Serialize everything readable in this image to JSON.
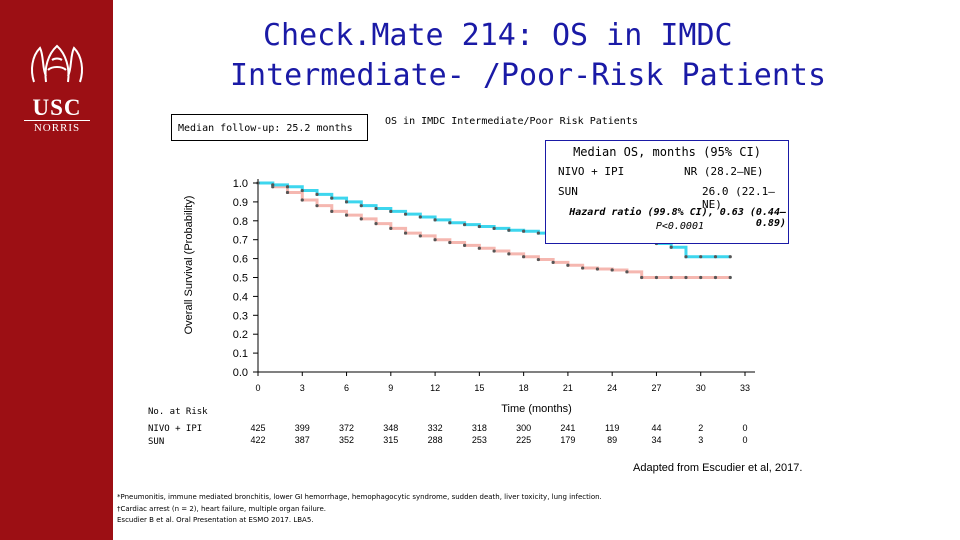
{
  "slide": {
    "title_line1": "Check.Mate 214: OS in IMDC",
    "title_line2": "Intermediate- /Poor-Risk Patients",
    "followup": "Median follow-up: 25.2 months",
    "logo": {
      "name": "USC",
      "sub": "NORRIS"
    },
    "credit": "Adapted from Escudier et al, 2017.",
    "footnotes": [
      "*Pneumonitis, immune mediated bronchitis, lower GI hemorrhage, hemophagocytic syndrome, sudden death, liver toxicity, lung infection.",
      "†Cardiac arrest (n = 2), heart failure, multiple organ failure.",
      "Escudier B et al. Oral Presentation at ESMO 2017. LBA5."
    ],
    "colors": {
      "sidebar": "#9c0f14",
      "background": "#1a1aa6",
      "nivo_ipi": "#3dd6ee",
      "sun": "#f5b7b0"
    }
  },
  "chart_data": {
    "type": "line",
    "title": "OS in IMDC Intermediate/Poor Risk Patients",
    "xlabel": "Time (months)",
    "ylabel": "Overall Survival (Probability)",
    "xlim": [
      0,
      33
    ],
    "ylim": [
      0,
      1.0
    ],
    "x_ticks": [
      "0",
      "3",
      "6",
      "9",
      "12",
      "15",
      "18",
      "21",
      "24",
      "27",
      "30",
      "33"
    ],
    "y_ticks": [
      "0.0",
      "0.1",
      "0.2",
      "0.3",
      "0.4",
      "0.5",
      "0.6",
      "0.7",
      "0.8",
      "0.9",
      "1.0"
    ],
    "legend": {
      "header": "Median OS, months (95% CI)",
      "entries": [
        {
          "name": "NIVO + IPI",
          "value": "NR (28.2–NE)"
        },
        {
          "name": "SUN",
          "value": "26.0 (22.1–NE)"
        }
      ],
      "hr_line1": "Hazard ratio (99.8% CI), 0.63 (0.44–0.89)",
      "hr_line2": "P<0.0001"
    },
    "series": [
      {
        "name": "NIVO + IPI",
        "color": "#3dd6ee",
        "x": [
          0,
          1,
          2,
          3,
          4,
          5,
          6,
          7,
          8,
          9,
          10,
          11,
          12,
          13,
          14,
          15,
          16,
          17,
          18,
          19,
          20,
          21,
          22,
          23,
          24,
          25,
          26,
          27,
          28,
          29,
          30,
          31,
          32
        ],
        "y": [
          1.0,
          0.99,
          0.98,
          0.96,
          0.94,
          0.92,
          0.9,
          0.88,
          0.865,
          0.85,
          0.835,
          0.82,
          0.805,
          0.79,
          0.78,
          0.77,
          0.76,
          0.75,
          0.745,
          0.735,
          0.725,
          0.72,
          0.71,
          0.705,
          0.7,
          0.695,
          0.69,
          0.68,
          0.66,
          0.61,
          0.61,
          0.61,
          0.61
        ]
      },
      {
        "name": "SUN",
        "color": "#f5b7b0",
        "x": [
          0,
          1,
          2,
          3,
          4,
          5,
          6,
          7,
          8,
          9,
          10,
          11,
          12,
          13,
          14,
          15,
          16,
          17,
          18,
          19,
          20,
          21,
          22,
          23,
          24,
          25,
          26,
          27,
          28,
          29,
          30,
          31,
          32
        ],
        "y": [
          1.0,
          0.98,
          0.95,
          0.91,
          0.88,
          0.85,
          0.83,
          0.81,
          0.785,
          0.76,
          0.735,
          0.72,
          0.7,
          0.685,
          0.67,
          0.655,
          0.64,
          0.625,
          0.61,
          0.595,
          0.58,
          0.565,
          0.55,
          0.545,
          0.54,
          0.53,
          0.5,
          0.5,
          0.5,
          0.5,
          0.5,
          0.5,
          0.5
        ]
      }
    ],
    "at_risk": {
      "title": "No. at Risk",
      "rows": [
        {
          "label": "NIVO + IPI",
          "values": [
            "425",
            "399",
            "372",
            "348",
            "332",
            "318",
            "300",
            "241",
            "119",
            "44",
            "2",
            "0"
          ]
        },
        {
          "label": "SUN",
          "values": [
            "422",
            "387",
            "352",
            "315",
            "288",
            "253",
            "225",
            "179",
            "89",
            "34",
            "3",
            "0"
          ]
        }
      ]
    }
  }
}
